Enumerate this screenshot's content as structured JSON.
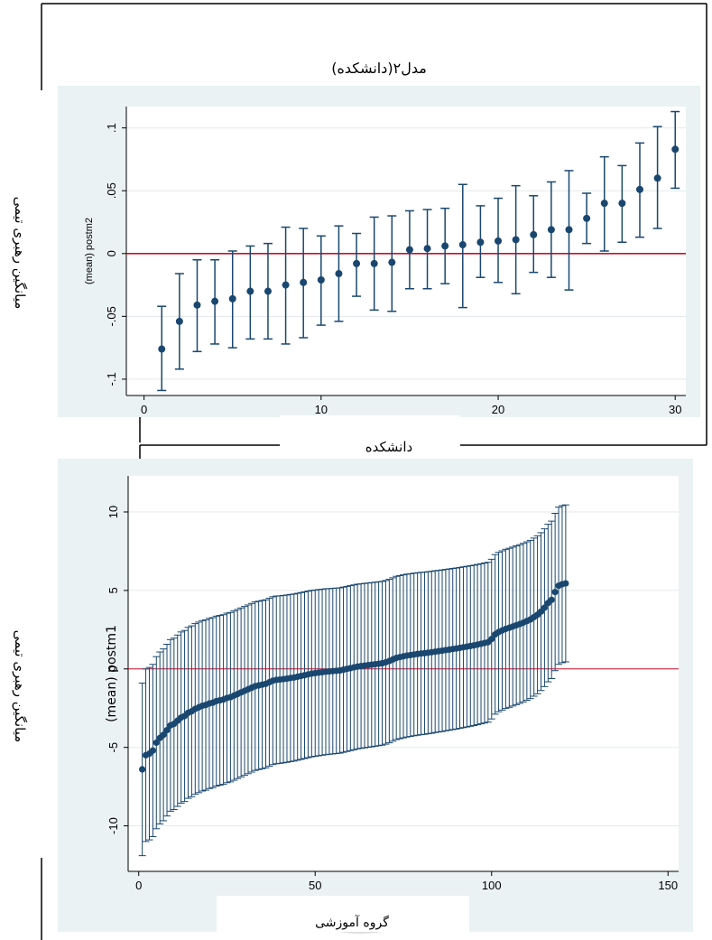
{
  "figure": {
    "side_label_top": "میانگین رهبری تیمی",
    "side_label_bottom": "میانگین رهبری تیمی"
  },
  "chart_data": [
    {
      "type": "scatter",
      "title": "مدل۲(دانشکده)",
      "xlabel": "دانشکده",
      "ylabel": "(mean) postm2",
      "xlim": [
        -1,
        30.6
      ],
      "ylim": [
        -0.113,
        0.117
      ],
      "xticks": [
        0,
        10,
        20,
        30
      ],
      "yticks": [
        -0.1,
        -0.05,
        0,
        0.05,
        0.1
      ],
      "ytick_labels": [
        "-.1",
        "-.05",
        "0",
        ".05",
        ".1"
      ],
      "reference_line_y": 0,
      "reference_color": "#c8102e",
      "marker_color": "#1a476f",
      "background": "#eaf2f3",
      "points": [
        {
          "x": 1,
          "y": -0.076,
          "lo": -0.109,
          "hi": -0.042
        },
        {
          "x": 2,
          "y": -0.054,
          "lo": -0.092,
          "hi": -0.016
        },
        {
          "x": 3,
          "y": -0.041,
          "lo": -0.078,
          "hi": -0.005
        },
        {
          "x": 4,
          "y": -0.038,
          "lo": -0.072,
          "hi": -0.005
        },
        {
          "x": 5,
          "y": -0.036,
          "lo": -0.075,
          "hi": 0.002
        },
        {
          "x": 6,
          "y": -0.03,
          "lo": -0.068,
          "hi": 0.006
        },
        {
          "x": 7,
          "y": -0.03,
          "lo": -0.068,
          "hi": 0.008
        },
        {
          "x": 8,
          "y": -0.025,
          "lo": -0.072,
          "hi": 0.021
        },
        {
          "x": 9,
          "y": -0.023,
          "lo": -0.067,
          "hi": 0.02
        },
        {
          "x": 10,
          "y": -0.021,
          "lo": -0.057,
          "hi": 0.014
        },
        {
          "x": 11,
          "y": -0.016,
          "lo": -0.054,
          "hi": 0.022
        },
        {
          "x": 12,
          "y": -0.008,
          "lo": -0.034,
          "hi": 0.016
        },
        {
          "x": 13,
          "y": -0.008,
          "lo": -0.045,
          "hi": 0.029
        },
        {
          "x": 14,
          "y": -0.007,
          "lo": -0.046,
          "hi": 0.03
        },
        {
          "x": 15,
          "y": 0.003,
          "lo": -0.028,
          "hi": 0.034
        },
        {
          "x": 16,
          "y": 0.004,
          "lo": -0.028,
          "hi": 0.035
        },
        {
          "x": 17,
          "y": 0.006,
          "lo": -0.024,
          "hi": 0.036
        },
        {
          "x": 18,
          "y": 0.007,
          "lo": -0.043,
          "hi": 0.055
        },
        {
          "x": 19,
          "y": 0.009,
          "lo": -0.019,
          "hi": 0.038
        },
        {
          "x": 20,
          "y": 0.01,
          "lo": -0.023,
          "hi": 0.044
        },
        {
          "x": 21,
          "y": 0.011,
          "lo": -0.032,
          "hi": 0.054
        },
        {
          "x": 22,
          "y": 0.015,
          "lo": -0.015,
          "hi": 0.046
        },
        {
          "x": 23,
          "y": 0.019,
          "lo": -0.019,
          "hi": 0.057
        },
        {
          "x": 24,
          "y": 0.019,
          "lo": -0.029,
          "hi": 0.066
        },
        {
          "x": 25,
          "y": 0.028,
          "lo": 0.008,
          "hi": 0.048
        },
        {
          "x": 26,
          "y": 0.04,
          "lo": 0.002,
          "hi": 0.077
        },
        {
          "x": 27,
          "y": 0.04,
          "lo": 0.009,
          "hi": 0.07
        },
        {
          "x": 28,
          "y": 0.051,
          "lo": 0.013,
          "hi": 0.088
        },
        {
          "x": 29,
          "y": 0.06,
          "lo": 0.02,
          "hi": 0.101
        },
        {
          "x": 30,
          "y": 0.083,
          "lo": 0.052,
          "hi": 0.113
        }
      ]
    },
    {
      "type": "scatter",
      "title": "",
      "xlabel": "گروه آموزشی",
      "ylabel": "(mean) postm1",
      "xlim": [
        -3,
        153
      ],
      "ylim": [
        -12.9,
        12.3
      ],
      "xticks": [
        0,
        50,
        100,
        150
      ],
      "yticks": [
        -10,
        -5,
        0,
        5,
        10
      ],
      "ytick_labels": [
        "-10",
        "-5",
        "0",
        "5",
        "10"
      ],
      "reference_line_y": 0,
      "reference_color": "#c8102e",
      "marker_color": "#1a476f",
      "background": "#eaf2f3",
      "n_points": 121,
      "y_values": [
        -6.4,
        -5.5,
        -5.4,
        -5.2,
        -4.7,
        -4.4,
        -4.2,
        -3.9,
        -3.6,
        -3.5,
        -3.3,
        -3.1,
        -3.0,
        -2.8,
        -2.7,
        -2.55,
        -2.45,
        -2.35,
        -2.3,
        -2.2,
        -2.15,
        -2.05,
        -2.0,
        -1.95,
        -1.85,
        -1.8,
        -1.7,
        -1.6,
        -1.5,
        -1.4,
        -1.3,
        -1.2,
        -1.1,
        -1.05,
        -1.0,
        -0.95,
        -0.85,
        -0.75,
        -0.7,
        -0.68,
        -0.65,
        -0.62,
        -0.58,
        -0.55,
        -0.5,
        -0.45,
        -0.4,
        -0.35,
        -0.3,
        -0.27,
        -0.24,
        -0.21,
        -0.18,
        -0.16,
        -0.14,
        -0.12,
        -0.1,
        -0.05,
        0.0,
        0.05,
        0.1,
        0.15,
        0.18,
        0.21,
        0.24,
        0.27,
        0.3,
        0.33,
        0.36,
        0.42,
        0.5,
        0.6,
        0.7,
        0.75,
        0.8,
        0.85,
        0.88,
        0.92,
        0.95,
        0.98,
        1.0,
        1.03,
        1.06,
        1.1,
        1.13,
        1.16,
        1.2,
        1.23,
        1.27,
        1.3,
        1.34,
        1.38,
        1.42,
        1.46,
        1.5,
        1.55,
        1.6,
        1.65,
        1.7,
        1.9,
        2.2,
        2.35,
        2.45,
        2.55,
        2.62,
        2.7,
        2.78,
        2.86,
        2.95,
        3.05,
        3.15,
        3.3,
        3.45,
        3.65,
        3.9,
        4.2,
        4.4,
        4.9,
        5.3,
        5.4,
        5.45
      ],
      "ci_halfwidth_range": [
        5.5,
        5.0
      ]
    }
  ]
}
